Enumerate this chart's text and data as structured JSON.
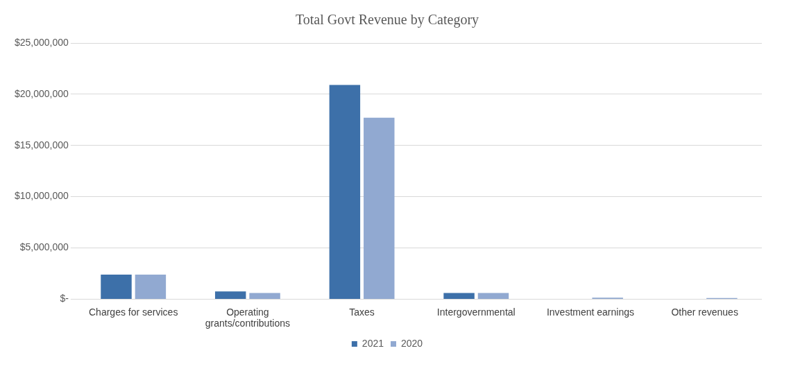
{
  "chart_data": {
    "type": "bar",
    "title": "Total Govt Revenue by Category",
    "categories": [
      "Charges for services",
      "Operating grants/contributions",
      "Taxes",
      "Intergovernmental",
      "Investment earnings",
      "Other revenues"
    ],
    "series": [
      {
        "name": "2021",
        "color": "#3d70a9",
        "values": [
          2400000,
          750000,
          20900000,
          600000,
          0,
          0
        ]
      },
      {
        "name": "2020",
        "color": "#91a9d1",
        "values": [
          2400000,
          600000,
          17700000,
          600000,
          150000,
          120000
        ]
      }
    ],
    "ylim": [
      0,
      25000000
    ],
    "yticks": [
      {
        "value": 0,
        "label": "$-"
      },
      {
        "value": 5000000,
        "label": "$5,000,000"
      },
      {
        "value": 10000000,
        "label": "$10,000,000"
      },
      {
        "value": 15000000,
        "label": "$15,000,000"
      },
      {
        "value": 20000000,
        "label": "$20,000,000"
      },
      {
        "value": 25000000,
        "label": "$25,000,000"
      }
    ],
    "grid": "y",
    "legend": "bottom"
  }
}
